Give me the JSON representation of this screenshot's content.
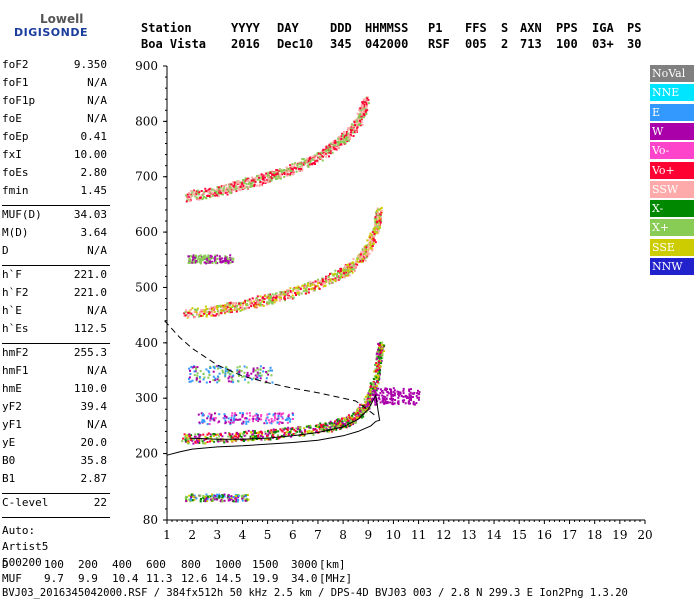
{
  "logo": {
    "line1": "Lowell",
    "line2": "DIGISONDE"
  },
  "header": {
    "row1": [
      "Station",
      "YYYY",
      "DAY",
      "DDD",
      "HHMMSS",
      "P1",
      "FFS",
      "S",
      "AXN",
      "PPS",
      "IGA",
      "PS"
    ],
    "row2": [
      "Boa Vista",
      "2016",
      "Dec10",
      "345",
      "042000",
      "RSF",
      "005",
      "2",
      "713",
      "100",
      "03+",
      "30"
    ]
  },
  "params": {
    "group1": [
      {
        "label": "foF2",
        "value": "9.350"
      },
      {
        "label": "foF1",
        "value": "N/A"
      },
      {
        "label": "foF1p",
        "value": "N/A"
      },
      {
        "label": "foE",
        "value": "N/A"
      },
      {
        "label": "foEp",
        "value": "0.41"
      },
      {
        "label": "fxI",
        "value": "10.00"
      },
      {
        "label": "foEs",
        "value": "2.80"
      },
      {
        "label": "fmin",
        "value": "1.45"
      }
    ],
    "group2": [
      {
        "label": "MUF(D)",
        "value": "34.03"
      },
      {
        "label": "M(D)",
        "value": "3.64"
      },
      {
        "label": "D",
        "value": "N/A"
      }
    ],
    "group3": [
      {
        "label": "h`F",
        "value": "221.0"
      },
      {
        "label": "h`F2",
        "value": "221.0"
      },
      {
        "label": "h`E",
        "value": "N/A"
      },
      {
        "label": "h`Es",
        "value": "112.5"
      }
    ],
    "group4": [
      {
        "label": "hmF2",
        "value": "255.3"
      },
      {
        "label": "hmF1",
        "value": "N/A"
      },
      {
        "label": "hmE",
        "value": "110.0"
      },
      {
        "label": "yF2",
        "value": "39.4"
      },
      {
        "label": "yF1",
        "value": "N/A"
      },
      {
        "label": "yE",
        "value": "20.0"
      },
      {
        "label": "B0",
        "value": "35.8"
      },
      {
        "label": "B1",
        "value": "2.87"
      }
    ],
    "group5": [
      {
        "label": "C-level",
        "value": "22"
      }
    ],
    "auto": [
      "Auto:",
      "Artist5",
      "500200"
    ]
  },
  "legend": [
    {
      "label": "NoVal",
      "bg": "#808080",
      "fg": "#ffffff"
    },
    {
      "label": "NNE",
      "bg": "#00e5ff",
      "fg": "#ffffff"
    },
    {
      "label": "E",
      "bg": "#3399ff",
      "fg": "#ffffff"
    },
    {
      "label": "W",
      "bg": "#aa00aa",
      "fg": "#ffffff"
    },
    {
      "label": "Vo-",
      "bg": "#ff44cc",
      "fg": "#ffffff"
    },
    {
      "label": "Vo+",
      "bg": "#ff0033",
      "fg": "#ffffff"
    },
    {
      "label": "SSW",
      "bg": "#ffaaaa",
      "fg": "#ffffff"
    },
    {
      "label": "X-",
      "bg": "#008800",
      "fg": "#ffffff"
    },
    {
      "label": "X+",
      "bg": "#88cc55",
      "fg": "#ffffff"
    },
    {
      "label": "SSE",
      "bg": "#cccc00",
      "fg": "#ffffff"
    },
    {
      "label": "NNW",
      "bg": "#2222cc",
      "fg": "#ffffff"
    }
  ],
  "bottom": {
    "d_label": "D",
    "d_values": [
      "100",
      "200",
      "400",
      "600",
      "800",
      "1000",
      "1500",
      "3000"
    ],
    "d_unit": "[km]",
    "muf_label": "MUF",
    "muf_values": [
      "9.7",
      "9.9",
      "10.4",
      "11.3",
      "12.6",
      "14.5",
      "19.9",
      "34.0"
    ],
    "muf_unit": "[MHz]",
    "footer": "BVJ03_2016345042000.RSF / 384fx512h 50 kHz 2.5 km / DPS-4D BVJ03 003 / 2.8 N 299.3 E Ion2Png 1.3.20"
  },
  "chart_data": {
    "type": "scatter",
    "xlabel": "",
    "ylabel": "",
    "xlim": [
      1,
      20
    ],
    "ylim": [
      80,
      900
    ],
    "x_ticks": [
      "1",
      "2",
      "3",
      "4",
      "5",
      "6",
      "7",
      "8",
      "9",
      "10",
      "11",
      "12",
      "13",
      "14",
      "15",
      "16",
      "17",
      "18",
      "19",
      "20"
    ],
    "y_ticks": [
      "900",
      "800",
      "700",
      "600",
      "500",
      "400",
      "300",
      "200",
      "80"
    ],
    "y_tick_values": [
      900,
      800,
      700,
      600,
      500,
      400,
      300,
      200,
      80
    ],
    "grid": false,
    "series": [
      {
        "colors": [
          "#ff0033",
          "#88cc55",
          "#008800",
          "#aa00aa",
          "#cccc00"
        ],
        "trace": [
          [
            1.6,
            228
          ],
          [
            3,
            230
          ],
          [
            4,
            233
          ],
          [
            5,
            236
          ],
          [
            6,
            240
          ],
          [
            7,
            246
          ],
          [
            7.6,
            252
          ],
          [
            8.2,
            260
          ],
          [
            8.6,
            272
          ],
          [
            8.9,
            290
          ],
          [
            9.1,
            310
          ],
          [
            9.3,
            340
          ],
          [
            9.4,
            372
          ],
          [
            9.5,
            400
          ]
        ]
      },
      {
        "colors": [
          "#ff0033",
          "#ffaaaa",
          "#88cc55",
          "#cccc00"
        ],
        "trace": [
          [
            1.7,
            455
          ],
          [
            3,
            460
          ],
          [
            4,
            470
          ],
          [
            5,
            480
          ],
          [
            6,
            492
          ],
          [
            7,
            508
          ],
          [
            8,
            528
          ],
          [
            8.6,
            550
          ],
          [
            9,
            575
          ],
          [
            9.3,
            610
          ],
          [
            9.4,
            640
          ]
        ]
      },
      {
        "colors": [
          "#ff0033",
          "#ffaaaa",
          "#88cc55"
        ],
        "trace": [
          [
            1.7,
            665
          ],
          [
            3,
            675
          ],
          [
            4,
            688
          ],
          [
            5,
            700
          ],
          [
            6,
            715
          ],
          [
            7,
            738
          ],
          [
            8,
            770
          ],
          [
            8.6,
            800
          ],
          [
            8.9,
            840
          ]
        ]
      },
      {
        "colors": [
          "#aa00aa"
        ],
        "cluster": [
          [
            9.1,
            320
          ],
          [
            11,
            290
          ]
        ]
      },
      {
        "colors": [
          "#3399ff",
          "#aa00aa",
          "#88cc55",
          "#cccc00",
          "#008800"
        ],
        "cluster": [
          [
            1.7,
            115
          ],
          [
            4.2,
            128
          ]
        ]
      },
      {
        "colors": [
          "#aa00aa",
          "#3399ff",
          "#88cc55"
        ],
        "cluster": [
          [
            1.8,
            330
          ],
          [
            5.2,
            360
          ]
        ]
      },
      {
        "colors": [
          "#88cc55",
          "#aa00aa"
        ],
        "cluster": [
          [
            1.8,
            545
          ],
          [
            3.6,
            560
          ]
        ]
      },
      {
        "colors": [
          "#aa00aa",
          "#ff44cc",
          "#3399ff"
        ],
        "cluster": [
          [
            2.2,
            255
          ],
          [
            6,
            275
          ]
        ]
      }
    ],
    "model_curves": {
      "dashed": [
        [
          0.9,
          440
        ],
        [
          1.5,
          410
        ],
        [
          2,
          390
        ],
        [
          3,
          360
        ],
        [
          4,
          340
        ],
        [
          5,
          328
        ],
        [
          6,
          318
        ],
        [
          7,
          310
        ],
        [
          8,
          300
        ],
        [
          8.5,
          295
        ],
        [
          8.9,
          282
        ],
        [
          9.3,
          268
        ]
      ],
      "solid_lower": [
        [
          1.0,
          197
        ],
        [
          1.5,
          203
        ],
        [
          2,
          208
        ],
        [
          3,
          212
        ],
        [
          4,
          214
        ],
        [
          5,
          217
        ],
        [
          6,
          220
        ],
        [
          7,
          224
        ],
        [
          8,
          232
        ],
        [
          8.6,
          240
        ],
        [
          9.1,
          250
        ],
        [
          9.3,
          258
        ]
      ],
      "solid_upper": [
        [
          1.9,
          228
        ],
        [
          3,
          226
        ],
        [
          4,
          226
        ],
        [
          5,
          228
        ],
        [
          6,
          232
        ],
        [
          7,
          238
        ],
        [
          8,
          248
        ],
        [
          8.6,
          262
        ],
        [
          9.0,
          280
        ],
        [
          9.3,
          305
        ]
      ]
    }
  }
}
